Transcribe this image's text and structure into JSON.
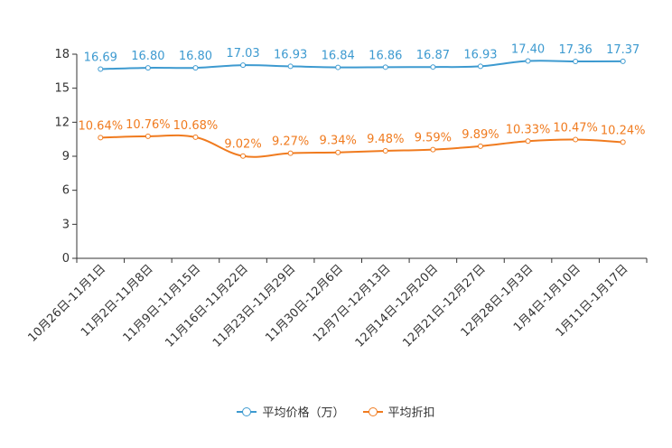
{
  "chart_data": {
    "type": "line",
    "categories": [
      "10月26日-11月1日",
      "11月2日-11月8日",
      "11月9日-11月15日",
      "11月16日-11月22日",
      "11月23日-11月29日",
      "11月30日-12月6日",
      "12月7日-12月13日",
      "12月14日-12月20日",
      "12月21日-12月27日",
      "12月28日-1月3日",
      "1月4日-1月10日",
      "1月11日-1月17日"
    ],
    "series": [
      {
        "name": "平均价格（万）",
        "color": "#3d9ad0",
        "values": [
          16.69,
          16.8,
          16.8,
          17.03,
          16.93,
          16.84,
          16.86,
          16.87,
          16.93,
          17.4,
          17.36,
          17.37
        ],
        "labels": [
          "16.69",
          "16.80",
          "16.80",
          "17.03",
          "16.93",
          "16.84",
          "16.86",
          "16.87",
          "16.93",
          "17.40",
          "17.36",
          "17.37"
        ]
      },
      {
        "name": "平均折扣",
        "color": "#f07b1f",
        "values": [
          10.64,
          10.76,
          10.68,
          9.02,
          9.27,
          9.34,
          9.48,
          9.59,
          9.89,
          10.33,
          10.47,
          10.24
        ],
        "labels": [
          "10.64%",
          "10.76%",
          "10.68%",
          "9.02%",
          "9.27%",
          "9.34%",
          "9.48%",
          "9.59%",
          "9.89%",
          "10.33%",
          "10.47%",
          "10.24%"
        ]
      }
    ],
    "ylim": [
      0,
      18
    ],
    "yticks": [
      "0",
      "3",
      "6",
      "9",
      "12",
      "15",
      "18"
    ],
    "legend_position": "bottom-center"
  }
}
